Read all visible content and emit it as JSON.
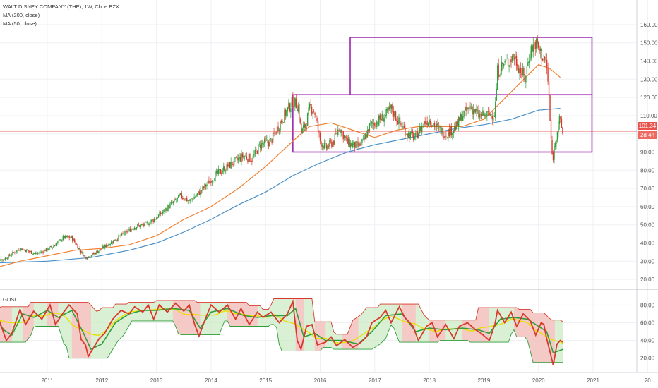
{
  "legend": {
    "title": "WALT DISNEY COMPANY (THE), 1W, Cboe BZX",
    "ma200": "MA (200, close)",
    "ma50": "MA (50, close)",
    "indicator": "GDSI"
  },
  "price_tag": "101.34",
  "time_tag": "2d 4h",
  "colors": {
    "up": "#2e9e3a",
    "down": "#d8392b",
    "ma50": "#f08030",
    "ma200": "#4a90c8",
    "box": "#9c27b0",
    "last_price_line": "#e8524a",
    "gdsi_main": "#d8392b",
    "gdsi_signal": "#2e9e3a",
    "gdsi_mid": "#e8e000",
    "band_red_fill": "#f6c4c4",
    "band_green_fill": "#cdebc6"
  },
  "chart_data": [
    {
      "type": "candlestick",
      "title": "WALT DISNEY COMPANY (THE), 1W, Cboe BZX",
      "x_ticks": [
        "2011",
        "2012",
        "2013",
        "2014",
        "2015",
        "2016",
        "2017",
        "2018",
        "2019",
        "2020",
        "2021",
        "20"
      ],
      "y_ticks": [
        20,
        30,
        40,
        50,
        60,
        70,
        80,
        90,
        100,
        110,
        120,
        130,
        140,
        150,
        160
      ],
      "ylim": [
        15,
        165
      ],
      "last_price": 101.34,
      "series": [
        {
          "name": "MA (200, close)"
        },
        {
          "name": "MA (50, close)"
        }
      ],
      "close_path": [
        [
          2010.2,
          31
        ],
        [
          2010.5,
          37
        ],
        [
          2010.8,
          34
        ],
        [
          2011.1,
          38
        ],
        [
          2011.3,
          43
        ],
        [
          2011.45,
          43
        ],
        [
          2011.6,
          36
        ],
        [
          2011.7,
          32
        ],
        [
          2011.85,
          34
        ],
        [
          2012.0,
          37
        ],
        [
          2012.3,
          43
        ],
        [
          2012.6,
          49
        ],
        [
          2012.8,
          50
        ],
        [
          2013.0,
          54
        ],
        [
          2013.3,
          62
        ],
        [
          2013.45,
          66
        ],
        [
          2013.6,
          63
        ],
        [
          2013.8,
          68
        ],
        [
          2014.0,
          75
        ],
        [
          2014.2,
          80
        ],
        [
          2014.4,
          84
        ],
        [
          2014.6,
          88
        ],
        [
          2014.75,
          86
        ],
        [
          2014.9,
          94
        ],
        [
          2015.1,
          96
        ],
        [
          2015.3,
          108
        ],
        [
          2015.5,
          118
        ],
        [
          2015.6,
          115
        ],
        [
          2015.65,
          100
        ],
        [
          2015.75,
          107
        ],
        [
          2015.82,
          115
        ],
        [
          2015.9,
          112
        ],
        [
          2016.0,
          96
        ],
        [
          2016.1,
          92
        ],
        [
          2016.25,
          96
        ],
        [
          2016.35,
          104
        ],
        [
          2016.5,
          95
        ],
        [
          2016.7,
          93
        ],
        [
          2016.8,
          96
        ],
        [
          2016.9,
          104
        ],
        [
          2017.0,
          106
        ],
        [
          2017.2,
          110
        ],
        [
          2017.3,
          114
        ],
        [
          2017.45,
          106
        ],
        [
          2017.6,
          100
        ],
        [
          2017.75,
          98
        ],
        [
          2017.9,
          106
        ],
        [
          2018.0,
          108
        ],
        [
          2018.15,
          103
        ],
        [
          2018.3,
          100
        ],
        [
          2018.5,
          104
        ],
        [
          2018.6,
          110
        ],
        [
          2018.75,
          115
        ],
        [
          2018.9,
          110
        ],
        [
          2019.0,
          110
        ],
        [
          2019.2,
          111
        ],
        [
          2019.25,
          134
        ],
        [
          2019.35,
          138
        ],
        [
          2019.45,
          140
        ],
        [
          2019.55,
          143
        ],
        [
          2019.65,
          136
        ],
        [
          2019.75,
          130
        ],
        [
          2019.85,
          146
        ],
        [
          2019.95,
          150
        ],
        [
          2020.05,
          144
        ],
        [
          2020.15,
          138
        ],
        [
          2020.2,
          117
        ],
        [
          2020.22,
          100
        ],
        [
          2020.26,
          85
        ],
        [
          2020.3,
          95
        ],
        [
          2020.38,
          108
        ],
        [
          2020.45,
          100
        ]
      ],
      "ma50": [
        [
          2010.0,
          26
        ],
        [
          2010.5,
          30
        ],
        [
          2011.0,
          33
        ],
        [
          2011.5,
          36
        ],
        [
          2012.0,
          37
        ],
        [
          2012.5,
          39
        ],
        [
          2013.0,
          44
        ],
        [
          2013.5,
          53
        ],
        [
          2014.0,
          60
        ],
        [
          2014.5,
          70
        ],
        [
          2015.0,
          82
        ],
        [
          2015.5,
          96
        ],
        [
          2015.8,
          104
        ],
        [
          2016.2,
          106
        ],
        [
          2016.6,
          102
        ],
        [
          2017.0,
          98
        ],
        [
          2017.4,
          102
        ],
        [
          2017.8,
          104
        ],
        [
          2018.2,
          104
        ],
        [
          2018.6,
          104
        ],
        [
          2019.0,
          108
        ],
        [
          2019.4,
          120
        ],
        [
          2019.8,
          132
        ],
        [
          2020.0,
          138
        ],
        [
          2020.2,
          136
        ],
        [
          2020.4,
          131
        ]
      ],
      "ma200": [
        [
          2010.0,
          29
        ],
        [
          2011.0,
          30
        ],
        [
          2011.8,
          32
        ],
        [
          2012.5,
          36
        ],
        [
          2013.0,
          40
        ],
        [
          2013.5,
          46
        ],
        [
          2014.0,
          53
        ],
        [
          2014.5,
          61
        ],
        [
          2015.0,
          68
        ],
        [
          2015.5,
          77
        ],
        [
          2016.0,
          84
        ],
        [
          2016.5,
          90
        ],
        [
          2017.0,
          94
        ],
        [
          2017.5,
          97
        ],
        [
          2018.0,
          100
        ],
        [
          2018.5,
          103
        ],
        [
          2019.0,
          105
        ],
        [
          2019.5,
          108
        ],
        [
          2020.0,
          113
        ],
        [
          2020.4,
          114
        ]
      ],
      "boxes": [
        {
          "x0": 2015.5,
          "x1": 2020.98,
          "y0": 90,
          "y1": 121.5
        },
        {
          "x0": 2016.55,
          "x1": 2020.98,
          "y0": 121.5,
          "y1": 153
        }
      ]
    },
    {
      "type": "line",
      "title": "GDSI",
      "y_ticks": [
        20,
        40,
        60,
        80
      ],
      "ylim": [
        7,
        93
      ],
      "series": [
        {
          "values": [
            [
              2010.0,
              72
            ],
            [
              2010.1,
              66
            ],
            [
              2010.25,
              40
            ],
            [
              2010.35,
              48
            ],
            [
              2010.5,
              75
            ],
            [
              2010.6,
              58
            ],
            [
              2010.75,
              73
            ],
            [
              2010.9,
              64
            ],
            [
              2011.05,
              80
            ],
            [
              2011.15,
              58
            ],
            [
              2011.3,
              72
            ],
            [
              2011.4,
              80
            ],
            [
              2011.55,
              70
            ],
            [
              2011.62,
              41
            ],
            [
              2011.7,
              35
            ],
            [
              2011.75,
              22
            ],
            [
              2011.85,
              32
            ],
            [
              2011.95,
              42
            ],
            [
              2012.05,
              48
            ],
            [
              2012.2,
              64
            ],
            [
              2012.35,
              74
            ],
            [
              2012.5,
              70
            ],
            [
              2012.6,
              78
            ],
            [
              2012.75,
              72
            ],
            [
              2012.85,
              80
            ],
            [
              2012.95,
              64
            ],
            [
              2013.05,
              80
            ],
            [
              2013.2,
              72
            ],
            [
              2013.35,
              82
            ],
            [
              2013.5,
              73
            ],
            [
              2013.6,
              80
            ],
            [
              2013.7,
              58
            ],
            [
              2013.78,
              45
            ],
            [
              2013.9,
              65
            ],
            [
              2014.0,
              80
            ],
            [
              2014.15,
              72
            ],
            [
              2014.3,
              80
            ],
            [
              2014.45,
              64
            ],
            [
              2014.55,
              76
            ],
            [
              2014.7,
              58
            ],
            [
              2014.85,
              72
            ],
            [
              2014.95,
              66
            ],
            [
              2015.1,
              72
            ],
            [
              2015.25,
              60
            ],
            [
              2015.4,
              70
            ],
            [
              2015.5,
              84
            ],
            [
              2015.58,
              40
            ],
            [
              2015.65,
              30
            ],
            [
              2015.75,
              56
            ],
            [
              2015.85,
              58
            ],
            [
              2015.95,
              35
            ],
            [
              2016.1,
              38
            ],
            [
              2016.2,
              44
            ],
            [
              2016.3,
              34
            ],
            [
              2016.45,
              41
            ],
            [
              2016.6,
              32
            ],
            [
              2016.75,
              38
            ],
            [
              2016.85,
              44
            ],
            [
              2016.95,
              60
            ],
            [
              2017.1,
              66
            ],
            [
              2017.2,
              74
            ],
            [
              2017.3,
              60
            ],
            [
              2017.45,
              78
            ],
            [
              2017.55,
              66
            ],
            [
              2017.7,
              56
            ],
            [
              2017.8,
              40
            ],
            [
              2017.95,
              56
            ],
            [
              2018.05,
              60
            ],
            [
              2018.15,
              44
            ],
            [
              2018.3,
              58
            ],
            [
              2018.45,
              42
            ],
            [
              2018.55,
              56
            ],
            [
              2018.7,
              60
            ],
            [
              2018.85,
              52
            ],
            [
              2018.95,
              48
            ],
            [
              2019.1,
              40
            ],
            [
              2019.2,
              58
            ],
            [
              2019.25,
              74
            ],
            [
              2019.38,
              60
            ],
            [
              2019.5,
              72
            ],
            [
              2019.6,
              56
            ],
            [
              2019.72,
              70
            ],
            [
              2019.85,
              62
            ],
            [
              2019.95,
              46
            ],
            [
              2020.05,
              60
            ],
            [
              2020.1,
              58
            ],
            [
              2020.15,
              42
            ],
            [
              2020.22,
              25
            ],
            [
              2020.27,
              12
            ],
            [
              2020.34,
              36
            ],
            [
              2020.4,
              40
            ],
            [
              2020.45,
              38
            ]
          ]
        },
        {
          "values": [
            [
              2010.0,
              70
            ],
            [
              2010.2,
              52
            ],
            [
              2010.35,
              46
            ],
            [
              2010.55,
              70
            ],
            [
              2010.75,
              66
            ],
            [
              2011.0,
              74
            ],
            [
              2011.2,
              66
            ],
            [
              2011.45,
              74
            ],
            [
              2011.65,
              50
            ],
            [
              2011.8,
              30
            ],
            [
              2012.0,
              36
            ],
            [
              2012.25,
              60
            ],
            [
              2012.5,
              70
            ],
            [
              2012.75,
              74
            ],
            [
              2013.0,
              74
            ],
            [
              2013.3,
              76
            ],
            [
              2013.6,
              74
            ],
            [
              2013.8,
              54
            ],
            [
              2014.0,
              72
            ],
            [
              2014.3,
              76
            ],
            [
              2014.6,
              68
            ],
            [
              2014.85,
              66
            ],
            [
              2015.1,
              68
            ],
            [
              2015.4,
              68
            ],
            [
              2015.55,
              76
            ],
            [
              2015.7,
              44
            ],
            [
              2015.9,
              48
            ],
            [
              2016.1,
              40
            ],
            [
              2016.4,
              40
            ],
            [
              2016.7,
              36
            ],
            [
              2016.95,
              50
            ],
            [
              2017.2,
              68
            ],
            [
              2017.5,
              70
            ],
            [
              2017.75,
              50
            ],
            [
              2018.0,
              54
            ],
            [
              2018.3,
              52
            ],
            [
              2018.6,
              54
            ],
            [
              2018.9,
              52
            ],
            [
              2019.1,
              48
            ],
            [
              2019.3,
              64
            ],
            [
              2019.55,
              66
            ],
            [
              2019.8,
              64
            ],
            [
              2020.0,
              56
            ],
            [
              2020.15,
              50
            ],
            [
              2020.27,
              26
            ],
            [
              2020.45,
              30
            ]
          ]
        }
      ]
    }
  ]
}
